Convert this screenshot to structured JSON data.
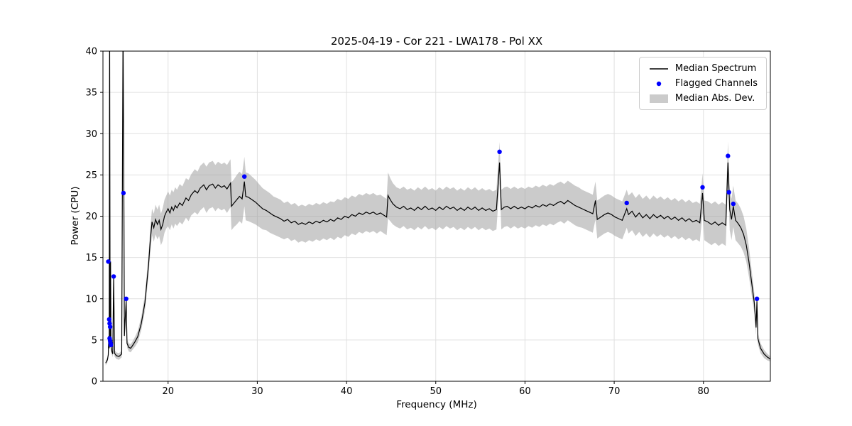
{
  "chart_data": {
    "type": "line",
    "title": "2025-04-19 - Cor 221 - LWA178 - Pol XX",
    "xlabel": "Frequency (MHz)",
    "ylabel": "Power (CPU)",
    "xlim": [
      12.7,
      87.5
    ],
    "ylim": [
      0,
      40
    ],
    "xticks": [
      20,
      30,
      40,
      50,
      60,
      70,
      80
    ],
    "yticks": [
      0,
      5,
      10,
      15,
      20,
      25,
      30,
      35,
      40
    ],
    "grid": true,
    "colors": {
      "line": "#000000",
      "flagged": "#0000ff",
      "band": "#a0a0a0"
    },
    "legend": {
      "position": "upper right",
      "entries": [
        {
          "label": "Median Spectrum",
          "type": "line"
        },
        {
          "label": "Flagged Channels",
          "type": "dot"
        },
        {
          "label": "Median Abs. Dev.",
          "type": "band"
        }
      ]
    },
    "median_spectrum": [
      [
        13.0,
        2.2,
        0.3
      ],
      [
        13.2,
        2.6,
        0.3
      ],
      [
        13.3,
        3.2,
        0.4
      ],
      [
        13.35,
        5.5,
        0.5
      ],
      [
        13.4,
        4.0,
        0.5
      ],
      [
        13.45,
        43,
        0.5
      ],
      [
        13.5,
        5.0,
        0.5
      ],
      [
        13.55,
        14.5,
        0.5
      ],
      [
        13.6,
        4.2,
        0.4
      ],
      [
        13.7,
        3.6,
        0.4
      ],
      [
        13.8,
        3.3,
        0.4
      ],
      [
        13.9,
        12.7,
        0.4
      ],
      [
        14.0,
        3.4,
        0.4
      ],
      [
        14.2,
        3.1,
        0.4
      ],
      [
        14.5,
        3.0,
        0.4
      ],
      [
        14.8,
        3.3,
        0.4
      ],
      [
        14.95,
        43,
        0.4
      ],
      [
        15.05,
        21.8,
        0.4
      ],
      [
        15.1,
        5.5,
        0.5
      ],
      [
        15.3,
        9.8,
        0.5
      ],
      [
        15.4,
        4.6,
        0.5
      ],
      [
        15.6,
        4.1,
        0.5
      ],
      [
        15.8,
        4.0,
        0.5
      ],
      [
        16.0,
        4.3,
        0.5
      ],
      [
        16.3,
        4.8,
        0.6
      ],
      [
        16.6,
        5.4,
        0.7
      ],
      [
        17.0,
        7.0,
        0.8
      ],
      [
        17.4,
        9.5,
        1.0
      ],
      [
        17.8,
        14.0,
        1.3
      ],
      [
        18.0,
        17.0,
        1.5
      ],
      [
        18.2,
        19.3,
        1.6
      ],
      [
        18.4,
        18.6,
        1.7
      ],
      [
        18.6,
        19.6,
        1.8
      ],
      [
        18.8,
        19.0,
        1.8
      ],
      [
        19.0,
        19.5,
        1.9
      ],
      [
        19.2,
        18.4,
        1.9
      ],
      [
        19.4,
        19.0,
        2.0
      ],
      [
        19.6,
        20.0,
        2.0
      ],
      [
        19.8,
        20.5,
        2.0
      ],
      [
        20.0,
        20.9,
        2.1
      ],
      [
        20.2,
        20.4,
        2.1
      ],
      [
        20.4,
        21.1,
        2.1
      ],
      [
        20.6,
        20.7,
        2.2
      ],
      [
        20.8,
        21.3,
        2.2
      ],
      [
        21.0,
        21.0,
        2.2
      ],
      [
        21.3,
        21.6,
        2.3
      ],
      [
        21.6,
        21.3,
        2.3
      ],
      [
        22.0,
        22.2,
        2.4
      ],
      [
        22.3,
        21.9,
        2.5
      ],
      [
        22.6,
        22.6,
        2.5
      ],
      [
        23.0,
        23.1,
        2.6
      ],
      [
        23.3,
        22.8,
        2.6
      ],
      [
        23.6,
        23.4,
        2.7
      ],
      [
        24.0,
        23.8,
        2.7
      ],
      [
        24.3,
        23.2,
        2.8
      ],
      [
        24.6,
        23.7,
        2.8
      ],
      [
        25.0,
        23.9,
        2.8
      ],
      [
        25.3,
        23.4,
        2.8
      ],
      [
        25.6,
        23.8,
        2.8
      ],
      [
        26.0,
        23.5,
        2.8
      ],
      [
        26.3,
        23.7,
        2.8
      ],
      [
        26.6,
        23.3,
        2.9
      ],
      [
        27.0,
        24.0,
        2.9
      ],
      [
        27.1,
        21.2,
        2.9
      ],
      [
        27.4,
        21.6,
        2.9
      ],
      [
        27.7,
        22.0,
        3.0
      ],
      [
        28.0,
        22.4,
        3.0
      ],
      [
        28.3,
        22.1,
        3.0
      ],
      [
        28.55,
        24.2,
        3.0
      ],
      [
        28.7,
        22.4,
        2.9
      ],
      [
        29.0,
        22.3,
        2.9
      ],
      [
        29.4,
        22.0,
        2.8
      ],
      [
        29.8,
        21.7,
        2.7
      ],
      [
        30.2,
        21.3,
        2.6
      ],
      [
        30.6,
        20.9,
        2.5
      ],
      [
        31.0,
        20.7,
        2.4
      ],
      [
        31.4,
        20.4,
        2.4
      ],
      [
        31.8,
        20.1,
        2.3
      ],
      [
        32.2,
        19.9,
        2.3
      ],
      [
        32.6,
        19.7,
        2.3
      ],
      [
        33.0,
        19.4,
        2.2
      ],
      [
        33.4,
        19.6,
        2.2
      ],
      [
        33.8,
        19.2,
        2.2
      ],
      [
        34.2,
        19.4,
        2.2
      ],
      [
        34.6,
        19.0,
        2.2
      ],
      [
        35.0,
        19.2,
        2.2
      ],
      [
        35.4,
        19.0,
        2.2
      ],
      [
        35.8,
        19.3,
        2.2
      ],
      [
        36.2,
        19.1,
        2.2
      ],
      [
        36.6,
        19.4,
        2.2
      ],
      [
        37.0,
        19.2,
        2.2
      ],
      [
        37.4,
        19.5,
        2.2
      ],
      [
        37.8,
        19.3,
        2.2
      ],
      [
        38.2,
        19.6,
        2.2
      ],
      [
        38.6,
        19.4,
        2.3
      ],
      [
        39.0,
        19.8,
        2.3
      ],
      [
        39.4,
        19.6,
        2.3
      ],
      [
        39.8,
        20.0,
        2.3
      ],
      [
        40.2,
        19.8,
        2.3
      ],
      [
        40.6,
        20.2,
        2.3
      ],
      [
        41.0,
        20.0,
        2.3
      ],
      [
        41.4,
        20.4,
        2.3
      ],
      [
        41.8,
        20.2,
        2.3
      ],
      [
        42.2,
        20.5,
        2.3
      ],
      [
        42.6,
        20.3,
        2.3
      ],
      [
        43.0,
        20.5,
        2.3
      ],
      [
        43.4,
        20.2,
        2.3
      ],
      [
        43.8,
        20.4,
        2.2
      ],
      [
        44.2,
        20.1,
        2.2
      ],
      [
        44.5,
        19.9,
        2.2
      ],
      [
        44.65,
        22.5,
        2.8
      ],
      [
        44.9,
        22.0,
        2.6
      ],
      [
        45.2,
        21.5,
        2.5
      ],
      [
        45.6,
        21.1,
        2.4
      ],
      [
        46.0,
        20.9,
        2.4
      ],
      [
        46.4,
        21.2,
        2.4
      ],
      [
        46.8,
        20.8,
        2.4
      ],
      [
        47.2,
        21.0,
        2.4
      ],
      [
        47.6,
        20.7,
        2.4
      ],
      [
        48.0,
        21.1,
        2.4
      ],
      [
        48.4,
        20.8,
        2.4
      ],
      [
        48.8,
        21.2,
        2.4
      ],
      [
        49.2,
        20.8,
        2.4
      ],
      [
        49.6,
        21.0,
        2.4
      ],
      [
        50.0,
        20.7,
        2.4
      ],
      [
        50.4,
        21.1,
        2.4
      ],
      [
        50.8,
        20.8,
        2.4
      ],
      [
        51.2,
        21.2,
        2.4
      ],
      [
        51.6,
        20.9,
        2.4
      ],
      [
        52.0,
        21.1,
        2.4
      ],
      [
        52.4,
        20.7,
        2.4
      ],
      [
        52.8,
        21.0,
        2.4
      ],
      [
        53.2,
        20.7,
        2.4
      ],
      [
        53.6,
        21.1,
        2.4
      ],
      [
        54.0,
        20.8,
        2.4
      ],
      [
        54.4,
        21.1,
        2.4
      ],
      [
        54.8,
        20.7,
        2.4
      ],
      [
        55.2,
        21.0,
        2.4
      ],
      [
        55.6,
        20.7,
        2.4
      ],
      [
        56.0,
        20.9,
        2.4
      ],
      [
        56.4,
        20.6,
        2.4
      ],
      [
        56.8,
        20.8,
        2.4
      ],
      [
        57.15,
        26.5,
        2.5
      ],
      [
        57.35,
        20.8,
        2.4
      ],
      [
        57.7,
        21.1,
        2.4
      ],
      [
        58.0,
        21.2,
        2.4
      ],
      [
        58.4,
        20.9,
        2.4
      ],
      [
        58.8,
        21.2,
        2.4
      ],
      [
        59.2,
        20.9,
        2.4
      ],
      [
        59.6,
        21.1,
        2.4
      ],
      [
        60.0,
        20.9,
        2.4
      ],
      [
        60.4,
        21.2,
        2.4
      ],
      [
        60.8,
        21.0,
        2.4
      ],
      [
        61.2,
        21.3,
        2.4
      ],
      [
        61.6,
        21.1,
        2.4
      ],
      [
        62.0,
        21.4,
        2.4
      ],
      [
        62.4,
        21.2,
        2.4
      ],
      [
        62.8,
        21.5,
        2.4
      ],
      [
        63.2,
        21.3,
        2.4
      ],
      [
        63.6,
        21.6,
        2.4
      ],
      [
        64.0,
        21.8,
        2.4
      ],
      [
        64.4,
        21.5,
        2.4
      ],
      [
        64.8,
        21.9,
        2.4
      ],
      [
        65.2,
        21.6,
        2.4
      ],
      [
        65.6,
        21.3,
        2.4
      ],
      [
        66.0,
        21.1,
        2.4
      ],
      [
        66.4,
        20.9,
        2.3
      ],
      [
        66.8,
        20.7,
        2.3
      ],
      [
        67.2,
        20.5,
        2.3
      ],
      [
        67.6,
        20.3,
        2.3
      ],
      [
        67.9,
        21.9,
        2.3
      ],
      [
        68.1,
        19.6,
        2.3
      ],
      [
        68.5,
        19.9,
        2.3
      ],
      [
        68.9,
        20.2,
        2.3
      ],
      [
        69.3,
        20.4,
        2.3
      ],
      [
        69.7,
        20.2,
        2.3
      ],
      [
        70.1,
        19.9,
        2.3
      ],
      [
        70.5,
        19.7,
        2.3
      ],
      [
        70.9,
        19.5,
        2.3
      ],
      [
        71.4,
        20.9,
        2.3
      ],
      [
        71.6,
        20.2,
        2.3
      ],
      [
        72.0,
        20.6,
        2.3
      ],
      [
        72.4,
        19.9,
        2.3
      ],
      [
        72.8,
        20.4,
        2.3
      ],
      [
        73.2,
        19.8,
        2.3
      ],
      [
        73.6,
        20.2,
        2.3
      ],
      [
        74.0,
        19.7,
        2.3
      ],
      [
        74.4,
        20.2,
        2.3
      ],
      [
        74.8,
        19.8,
        2.3
      ],
      [
        75.2,
        20.1,
        2.3
      ],
      [
        75.6,
        19.7,
        2.3
      ],
      [
        76.0,
        20.0,
        2.3
      ],
      [
        76.4,
        19.6,
        2.3
      ],
      [
        76.8,
        19.9,
        2.3
      ],
      [
        77.2,
        19.5,
        2.3
      ],
      [
        77.6,
        19.8,
        2.3
      ],
      [
        78.0,
        19.4,
        2.3
      ],
      [
        78.4,
        19.7,
        2.3
      ],
      [
        78.8,
        19.3,
        2.3
      ],
      [
        79.2,
        19.5,
        2.3
      ],
      [
        79.6,
        19.2,
        2.3
      ],
      [
        79.9,
        22.8,
        2.4
      ],
      [
        80.1,
        19.5,
        2.4
      ],
      [
        80.5,
        19.3,
        2.5
      ],
      [
        80.9,
        19.0,
        2.5
      ],
      [
        81.3,
        19.3,
        2.5
      ],
      [
        81.7,
        18.9,
        2.5
      ],
      [
        82.1,
        19.2,
        2.5
      ],
      [
        82.5,
        18.9,
        2.5
      ],
      [
        82.75,
        26.5,
        2.5
      ],
      [
        82.95,
        20.8,
        2.5
      ],
      [
        83.15,
        19.6,
        2.5
      ],
      [
        83.35,
        21.2,
        2.5
      ],
      [
        83.6,
        19.5,
        2.4
      ],
      [
        83.9,
        19.1,
        2.4
      ],
      [
        84.2,
        18.6,
        2.3
      ],
      [
        84.5,
        17.8,
        2.2
      ],
      [
        84.8,
        16.5,
        2.0
      ],
      [
        85.1,
        14.5,
        1.8
      ],
      [
        85.4,
        12.0,
        1.5
      ],
      [
        85.7,
        9.5,
        1.2
      ],
      [
        85.9,
        6.5,
        0.9
      ],
      [
        86.0,
        9.7,
        0.8
      ],
      [
        86.1,
        5.2,
        0.7
      ],
      [
        86.4,
        4.0,
        0.6
      ],
      [
        86.8,
        3.3,
        0.5
      ],
      [
        87.2,
        2.9,
        0.4
      ],
      [
        87.5,
        2.7,
        0.3
      ]
    ],
    "flagged_channels": [
      [
        13.3,
        14.5
      ],
      [
        13.4,
        7.5
      ],
      [
        13.45,
        7.0
      ],
      [
        13.5,
        6.6
      ],
      [
        13.45,
        5.2
      ],
      [
        13.5,
        4.9
      ],
      [
        13.55,
        4.6
      ],
      [
        13.6,
        4.4
      ],
      [
        13.9,
        12.7
      ],
      [
        15.0,
        22.8
      ],
      [
        15.3,
        10.0
      ],
      [
        28.55,
        24.8
      ],
      [
        57.15,
        27.8
      ],
      [
        71.4,
        21.6
      ],
      [
        79.9,
        23.5
      ],
      [
        82.75,
        27.3
      ],
      [
        82.85,
        22.9
      ],
      [
        83.35,
        21.5
      ],
      [
        86.0,
        10.0
      ]
    ]
  }
}
